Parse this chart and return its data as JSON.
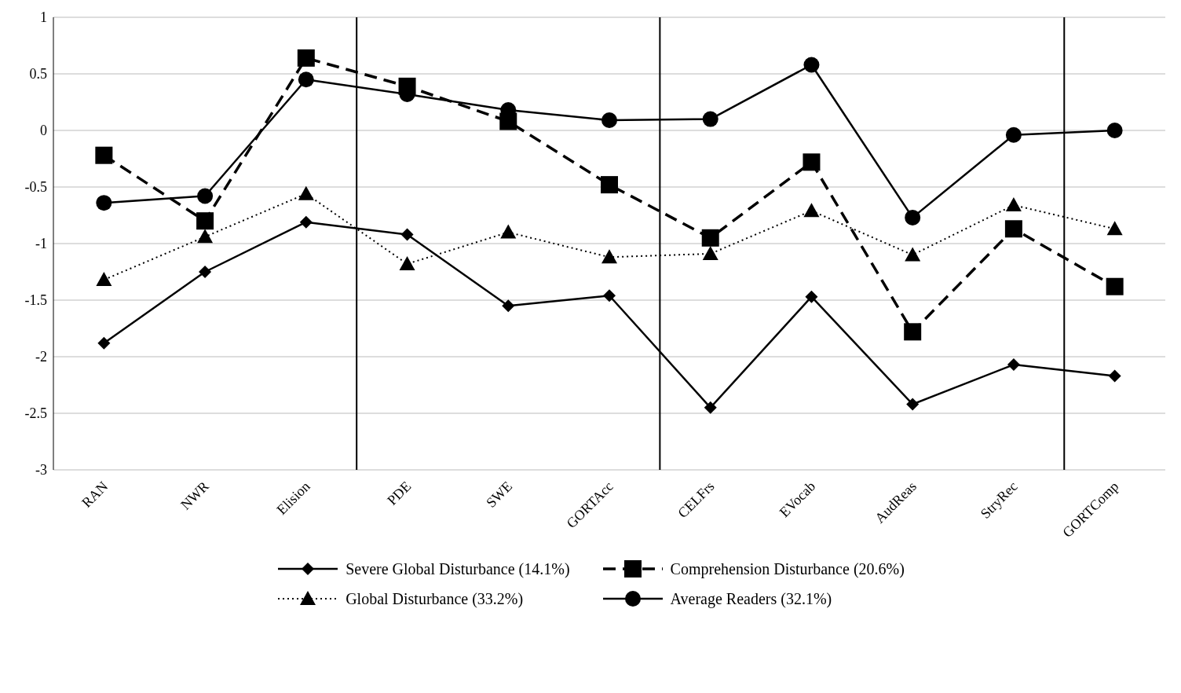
{
  "chart_data": {
    "type": "line",
    "categories": [
      "RAN",
      "NWR",
      "Elision",
      "PDE",
      "SWE",
      "GORTAcc",
      "CELFrs",
      "EVocab",
      "AudReas",
      "StryRec",
      "GORTComp"
    ],
    "series": [
      {
        "name": "Severe Global Disturbance (14.1%)",
        "color": "#000000",
        "marker": "diamond",
        "line_style": "solid",
        "values": [
          -1.88,
          -1.25,
          -0.81,
          -0.92,
          -1.55,
          -1.46,
          -2.45,
          -1.47,
          -2.42,
          -2.07,
          -2.17
        ]
      },
      {
        "name": "Comprehension Disturbance (20.6%)",
        "color": "#000000",
        "marker": "square",
        "line_style": "dashed",
        "values": [
          -0.22,
          -0.8,
          0.64,
          0.39,
          0.08,
          -0.48,
          -0.95,
          -0.28,
          -1.78,
          -0.87,
          -1.38
        ]
      },
      {
        "name": "Global Disturbance (33.2%)",
        "color": "#000000",
        "marker": "triangle",
        "line_style": "dotted",
        "values": [
          -1.32,
          -0.94,
          -0.56,
          -1.18,
          -0.9,
          -1.12,
          -1.09,
          -0.71,
          -1.1,
          -0.66,
          -0.87
        ]
      },
      {
        "name": "Average Readers (32.1%)",
        "color": "#000000",
        "marker": "circle",
        "line_style": "solid",
        "values": [
          -0.64,
          -0.58,
          0.45,
          0.32,
          0.18,
          0.09,
          0.1,
          0.58,
          -0.77,
          -0.04,
          0
        ]
      }
    ],
    "ylim": [
      -3,
      1
    ],
    "yticks": [
      -3,
      -2.5,
      -2,
      -1.5,
      -1,
      -0.5,
      0,
      0.5,
      1
    ],
    "grid": "y",
    "legend": "bottom"
  }
}
